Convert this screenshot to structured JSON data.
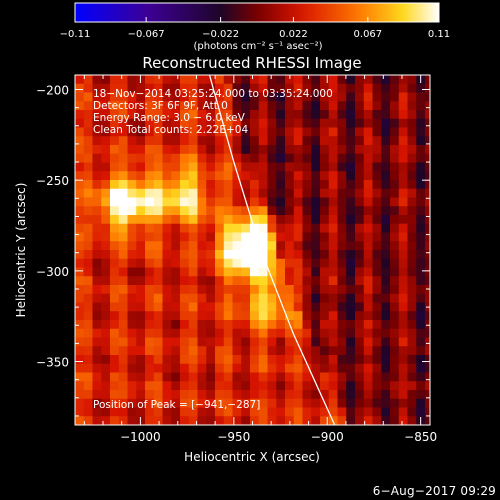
{
  "chart_data": {
    "type": "heatmap",
    "title": "Reconstructed RHESSI Image",
    "xlabel": "Heliocentric X (arcsec)",
    "ylabel": "Heliocentric Y (arcsec)",
    "xlim": [
      -1035,
      -845
    ],
    "ylim": [
      -385,
      -192
    ],
    "xticks": [
      -1000,
      -950,
      -900,
      -850
    ],
    "yticks": [
      -200,
      -250,
      -300,
      -350
    ],
    "xtick_labels": [
      "−1000",
      "−950",
      "−900",
      "−850"
    ],
    "ytick_labels": [
      "−200",
      "−250",
      "−300",
      "−350"
    ],
    "colorbar": {
      "min": -0.11,
      "max": 0.11,
      "ticks": [
        -0.11,
        -0.067,
        -0.022,
        0.022,
        0.067,
        0.11
      ],
      "tick_labels": [
        "−0.11",
        "−0.067",
        "−0.022",
        "0.022",
        "0.067",
        "0.11"
      ],
      "label": "(photons cm⁻² s⁻¹ asec⁻²)"
    },
    "annotations": [
      "18−Nov−2014 03:25:24.000 to 03:35:24.000",
      "Detectors: 3F 6F 9F, Att 0",
      "Energy Range: 3.0 − 6.0 keV",
      "Clean     Total counts: 2.22E+04",
      "Position of Peak = [−941,−287]"
    ],
    "limb_curve": [
      {
        "x": -963,
        "y": -192
      },
      {
        "x": -950,
        "y": -240
      },
      {
        "x": -935,
        "y": -290
      },
      {
        "x": -918,
        "y": -335
      },
      {
        "x": -896,
        "y": -385
      }
    ],
    "peak": {
      "x": -941,
      "y": -287,
      "value": 0.11
    },
    "sources": [
      {
        "x": -941,
        "y": -287,
        "amplitude": 1.0
      },
      {
        "x": -1007,
        "y": -263,
        "amplitude": 0.72
      },
      {
        "x": -977,
        "y": -258,
        "amplitude": 0.55
      },
      {
        "x": -930,
        "y": -318,
        "amplitude": 0.45
      }
    ]
  },
  "footer": {
    "date": "6−Aug−2017 09:29"
  }
}
